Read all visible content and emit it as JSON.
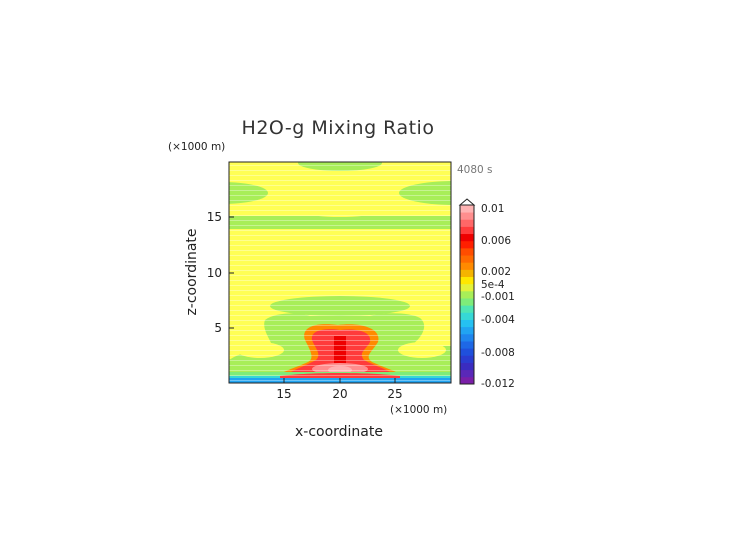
{
  "chart_data": {
    "type": "heatmap",
    "title": "H2O-g Mixing Ratio",
    "xlabel": "x-coordinate",
    "ylabel": "z-coordinate",
    "x_unit": "(×1000 m)",
    "y_unit": "(×1000 m)",
    "time_label": "4080 s",
    "xlim": [
      10,
      30
    ],
    "ylim": [
      0,
      20
    ],
    "x_ticks": [
      15,
      20,
      25
    ],
    "y_ticks": [
      5,
      10,
      15
    ],
    "colorbar": {
      "labels": [
        "0.01",
        "0.006",
        "0.002",
        "5e-4",
        "-0.001",
        "-0.004",
        "-0.008",
        "-0.012"
      ],
      "max_arrow": true,
      "colors": [
        "#7a1fa8",
        "#5a28b8",
        "#3a2cc0",
        "#2a3cd0",
        "#1f50dc",
        "#1e68e6",
        "#1f86ee",
        "#21a4f2",
        "#25c1f2",
        "#36d8d6",
        "#4fe5b4",
        "#7eec7a",
        "#a8ee58",
        "#e4f23a",
        "#ffe800",
        "#f5b400",
        "#ff8a00",
        "#ff6a00",
        "#ff4d00",
        "#ff1f00",
        "#ee0000",
        "#ff3b3b",
        "#ff6767",
        "#ff8e8e",
        "#ffb3b3"
      ]
    },
    "regions": [
      {
        "level": "~0 (background)",
        "color": "#ffff55"
      },
      {
        "level": "-0.001 (upper bands)",
        "color": "#a8ee58"
      },
      {
        "level": "0.002 to 0.01 (near surface, x≈17-23)",
        "color": "#ff3b3b"
      },
      {
        "level": "-0.004 (surface layer)",
        "color": "#21a4f2"
      }
    ]
  }
}
